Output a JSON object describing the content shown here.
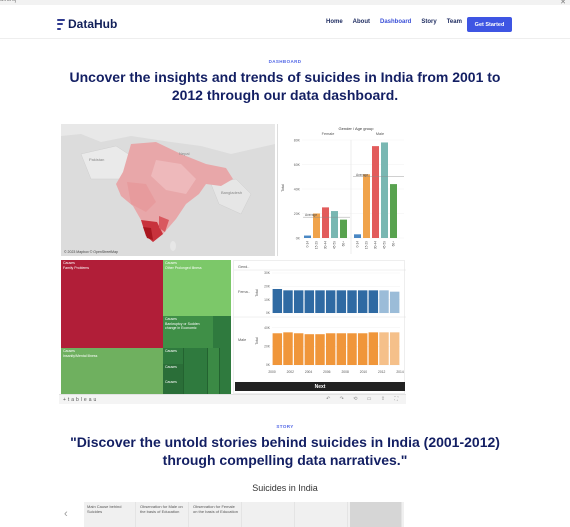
{
  "browser": {
    "left_text": "ulrorsj",
    "right_text": "✕"
  },
  "brand": {
    "name": "DataHub"
  },
  "nav": {
    "links": [
      "Home",
      "About",
      "Dashboard",
      "Story",
      "Team"
    ],
    "cta": "Get Started"
  },
  "dashboard_section": {
    "eyebrow": "DASHBOARD",
    "headline": "Uncover the insights and trends of suicides in India from 2001 to 2012 through our data dashboard."
  },
  "map": {
    "credit": "© 2023 Mapbox © OpenStreetMap",
    "labels": [
      "Pakistan",
      "Nepal",
      "Bangladesh"
    ]
  },
  "gender_age_chart": {
    "title": "Gender / Age group",
    "facets": [
      "Female",
      "Male"
    ],
    "ylabel": "Total",
    "yticks": [
      "0K",
      "20K",
      "40K",
      "60K",
      "80K"
    ],
    "average_label": "Average",
    "categories": [
      "0-14",
      "15-29",
      "30-44",
      "45-59",
      "60+"
    ],
    "female": [
      2,
      20,
      25,
      22,
      15
    ],
    "male": [
      3,
      52,
      75,
      78,
      44
    ],
    "colors": [
      "#4a88c4",
      "#f0a34b",
      "#e25c5c",
      "#79b7b2",
      "#58a24f"
    ]
  },
  "treemap": {
    "tiles": [
      {
        "label": "Causes\nFamily Problems",
        "color": "#b11e38"
      },
      {
        "label": "Causes\nOther Prolonged Illness",
        "color": "#7cc869"
      },
      {
        "label": "Causes\nBankruptcy or Sudden change in Economic",
        "color": "#3f8f47"
      },
      {
        "label": "Causes\nInsanity/Mental Illness",
        "color": "#6fb05f"
      },
      {
        "label": "Causes",
        "color": "#2f7a3e"
      },
      {
        "label": "Causes",
        "color": "#2a6e38"
      },
      {
        "label": "Causes",
        "color": "#2a6e38"
      }
    ]
  },
  "trend_chart": {
    "header": "Gend..",
    "rows": [
      "Fema..",
      "Male"
    ],
    "ylabel": "Total",
    "female_ticks": [
      "0K",
      "10K",
      "20K",
      "30K"
    ],
    "male_ticks": [
      "0K",
      "20K",
      "40K"
    ],
    "years": [
      "2000",
      "2002",
      "2004",
      "2006",
      "2008",
      "2010",
      "2012",
      "2014"
    ],
    "female_values": [
      18,
      17,
      17,
      17,
      17,
      17,
      17,
      17,
      17,
      17,
      17,
      16
    ],
    "male_values": [
      34,
      35,
      34,
      33,
      33,
      34,
      34,
      34,
      34,
      35,
      35,
      35
    ],
    "female_color": "#2f6aa3",
    "male_color": "#f0963a"
  },
  "next_button": "Next",
  "tableau_logo": "+ t a b l e a u",
  "story_section": {
    "eyebrow": "STORY",
    "headline": "\"Discover the untold stories behind suicides in India (2001-2012) through compelling data narratives.\"",
    "viz_title": "Suicides in India",
    "cells": [
      "Main Cause behind Suicides",
      "Observation for Male on the basis of Education",
      "Observation for Female on the basis of Education",
      "",
      "",
      ""
    ]
  }
}
